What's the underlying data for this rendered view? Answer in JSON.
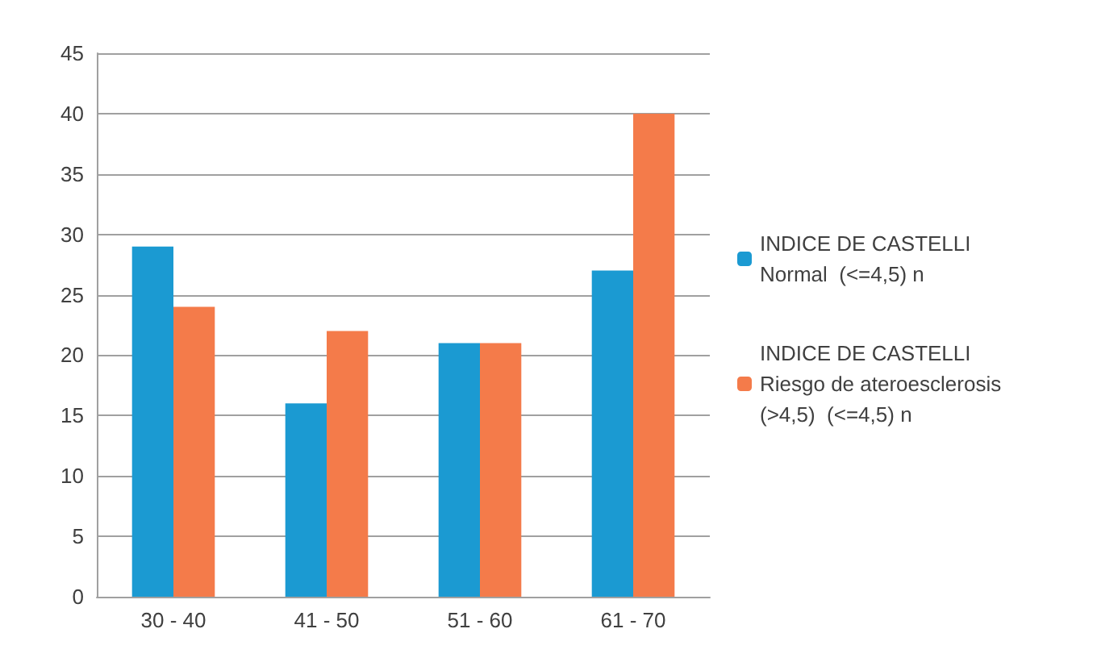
{
  "chart_data": {
    "type": "bar",
    "categories": [
      "30 - 40",
      "41 - 50",
      "51 - 60",
      "61 - 70"
    ],
    "series": [
      {
        "name": "INDICE DE CASTELLI\nNormal  (<=4,5) n",
        "color": "#1b9ad2",
        "values": [
          29,
          16,
          21,
          27
        ]
      },
      {
        "name": "INDICE DE CASTELLI\nRiesgo de ateroesclerosis\n(>4,5)  (<=4,5) n",
        "color": "#f47b4a",
        "values": [
          24,
          22,
          21,
          40
        ]
      }
    ],
    "ylim": [
      0,
      45
    ],
    "yticks": [
      0,
      5,
      10,
      15,
      20,
      25,
      30,
      35,
      40,
      45
    ],
    "grid": "y",
    "legend": "right"
  }
}
